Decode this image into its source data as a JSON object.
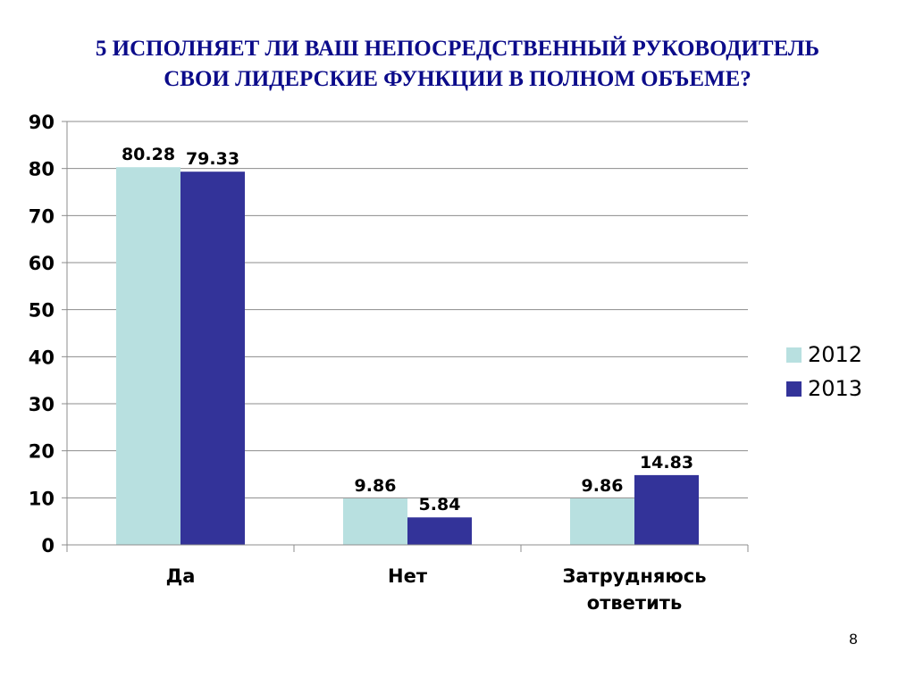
{
  "slide": {
    "title_line1": "5 ИСПОЛНЯЕТ ЛИ ВАШ НЕПОСРЕДСТВЕННЫЙ РУКОВОДИТЕЛЬ",
    "title_line2": "СВОИ ЛИДЕРСКИЕ ФУНКЦИИ В ПОЛНОМ ОБЪЕМЕ?",
    "page_number": "8"
  },
  "colors": {
    "title": "#0b0b8a",
    "series_2012": "#b8e0e0",
    "series_2013": "#333399",
    "grid": "#8c8c8c"
  },
  "chart_data": {
    "type": "bar",
    "title": "5 ИСПОЛНЯЕТ ЛИ ВАШ НЕПОСРЕДСТВЕННЫЙ РУКОВОДИТЕЛЬ СВОИ ЛИДЕРСКИЕ ФУНКЦИИ В ПОЛНОМ ОБЪЕМЕ?",
    "categories": [
      [
        "Да"
      ],
      [
        "Нет"
      ],
      [
        "Затрудняюсь",
        "ответить"
      ]
    ],
    "series": [
      {
        "name": "2012",
        "color": "#b8e0e0",
        "values": [
          80.28,
          9.86,
          9.86
        ],
        "labels": [
          "80.28",
          "9.86",
          "9.86"
        ]
      },
      {
        "name": "2013",
        "color": "#333399",
        "values": [
          79.33,
          5.84,
          14.83
        ],
        "labels": [
          "79.33",
          "5.84",
          "14.83"
        ]
      }
    ],
    "ylim": [
      0,
      90
    ],
    "yticks": [
      0,
      10,
      20,
      30,
      40,
      50,
      60,
      70,
      80,
      90
    ],
    "grid": true,
    "legend_position": "right"
  }
}
